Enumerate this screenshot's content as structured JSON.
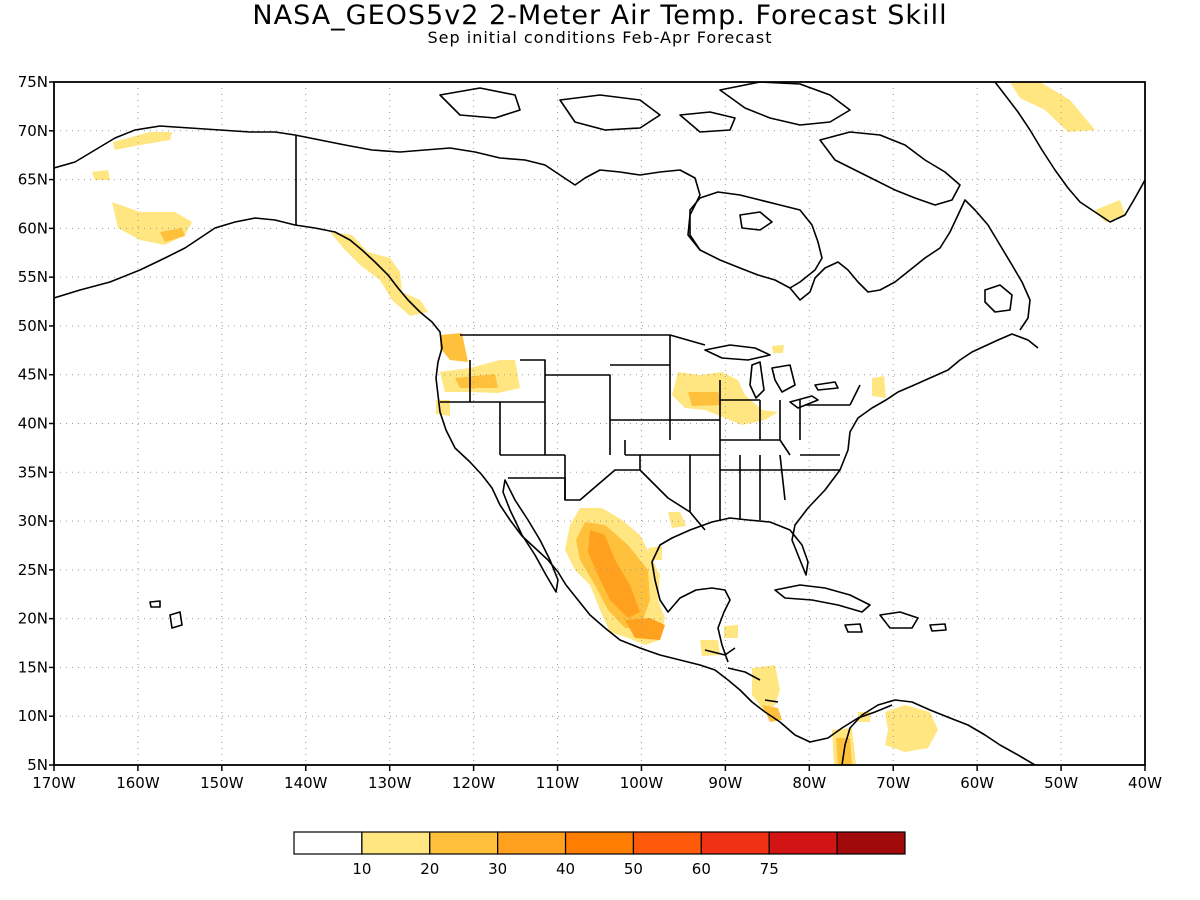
{
  "title": "NASA_GEOS5v2 2-Meter Air Temp. Forecast Skill",
  "subtitle": "Sep initial conditions  Feb-Apr Forecast",
  "map": {
    "lon_range": [
      -170,
      -40
    ],
    "lat_range": [
      5,
      75
    ],
    "lat_ticks": [
      {
        "v": 75,
        "t": "75N"
      },
      {
        "v": 70,
        "t": "70N"
      },
      {
        "v": 65,
        "t": "65N"
      },
      {
        "v": 60,
        "t": "60N"
      },
      {
        "v": 55,
        "t": "55N"
      },
      {
        "v": 50,
        "t": "50N"
      },
      {
        "v": 45,
        "t": "45N"
      },
      {
        "v": 40,
        "t": "40N"
      },
      {
        "v": 35,
        "t": "35N"
      },
      {
        "v": 30,
        "t": "30N"
      },
      {
        "v": 25,
        "t": "25N"
      },
      {
        "v": 20,
        "t": "20N"
      },
      {
        "v": 15,
        "t": "15N"
      },
      {
        "v": 10,
        "t": "10N"
      },
      {
        "v": 5,
        "t": "5N"
      }
    ],
    "lon_ticks": [
      {
        "v": -170,
        "t": "170W"
      },
      {
        "v": -160,
        "t": "160W"
      },
      {
        "v": -150,
        "t": "150W"
      },
      {
        "v": -140,
        "t": "140W"
      },
      {
        "v": -130,
        "t": "130W"
      },
      {
        "v": -120,
        "t": "120W"
      },
      {
        "v": -110,
        "t": "110W"
      },
      {
        "v": -100,
        "t": "100W"
      },
      {
        "v": -90,
        "t": "90W"
      },
      {
        "v": -80,
        "t": "80W"
      },
      {
        "v": -70,
        "t": "70W"
      },
      {
        "v": -60,
        "t": "60W"
      },
      {
        "v": -50,
        "t": "50W"
      },
      {
        "v": -40,
        "t": "40W"
      }
    ],
    "grid": true,
    "colors": {
      "land_line": "#000000",
      "grid": "#999999",
      "c10": "#ffe680",
      "c20": "#ffc03c",
      "c30": "#ffa01e",
      "c40": "#ff7d00"
    }
  },
  "colorbar": {
    "colors": [
      "#ffffff",
      "#ffe680",
      "#ffc03c",
      "#ffa01e",
      "#ff7d00",
      "#ff5a0a",
      "#f03214",
      "#d21414",
      "#a00a0a"
    ],
    "labels": [
      "10",
      "20",
      "30",
      "40",
      "50",
      "60",
      "75"
    ]
  }
}
